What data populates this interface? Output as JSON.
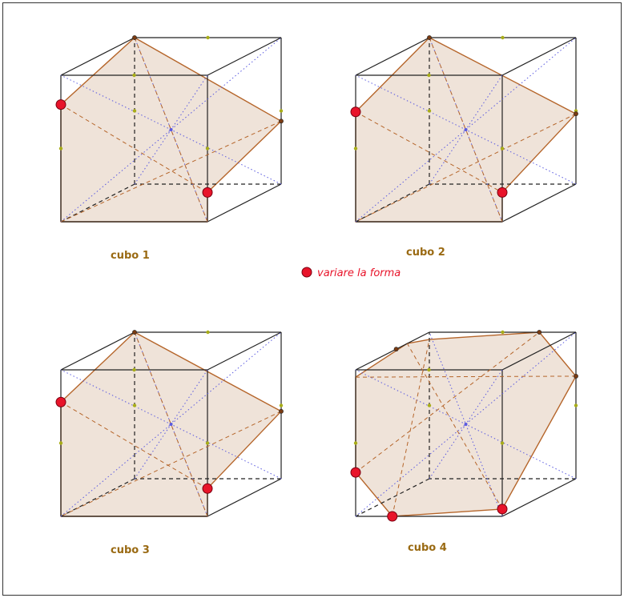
{
  "colors": {
    "edge": "#222222",
    "section_fill": "#efe3d9",
    "section_stroke": "#b5652a",
    "diagonal": "#5a5ae0",
    "handle_point": "#e8142a",
    "mid_point": "#a8ad18",
    "label": "#9a6a13",
    "legend_text": "#e8142a"
  },
  "cubes": [
    {
      "label": "cubo 1"
    },
    {
      "label": "cubo 2"
    },
    {
      "label": "cubo 3"
    },
    {
      "label": "cubo 4"
    }
  ],
  "legend": {
    "text": "variare la forma",
    "icon": "red-point-icon"
  }
}
